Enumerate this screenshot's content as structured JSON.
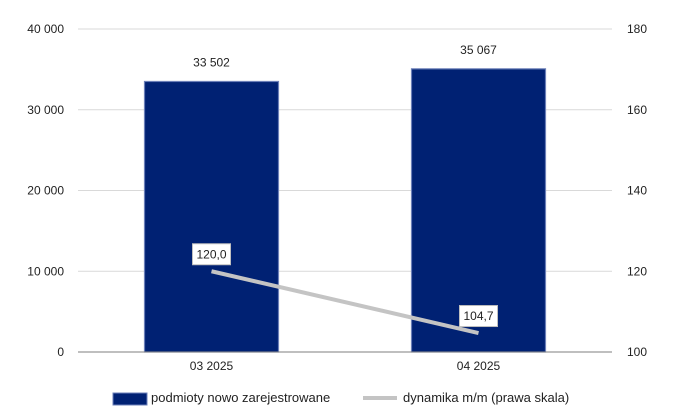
{
  "chart_data": {
    "type": "bar",
    "categories": [
      "03 2025",
      "04 2025"
    ],
    "series": [
      {
        "name": "podmioty nowo zarejestrowane",
        "kind": "bar",
        "axis": "left",
        "values": [
          33502,
          35067
        ],
        "labels": [
          "33 502",
          "35 067"
        ],
        "color": "#002173"
      },
      {
        "name": "dynamika m/m (prawa skala)",
        "kind": "line",
        "axis": "right",
        "values": [
          120.0,
          104.7
        ],
        "labels": [
          "120,0",
          "104,7"
        ],
        "color": "#c4c4c4"
      }
    ],
    "y_left": {
      "ylim": [
        0,
        40000
      ],
      "ticks": [
        0,
        10000,
        20000,
        30000,
        40000
      ],
      "tick_labels": [
        "0",
        "10 000",
        "20 000",
        "30 000",
        "40 000"
      ]
    },
    "y_right": {
      "ylim": [
        100,
        180
      ],
      "ticks": [
        100,
        120,
        140,
        160,
        180
      ],
      "tick_labels": [
        "100",
        "120",
        "140",
        "160",
        "180"
      ]
    },
    "grid": "horizontal",
    "legend_position": "bottom",
    "title": "",
    "xlabel": "",
    "ylabel": ""
  }
}
